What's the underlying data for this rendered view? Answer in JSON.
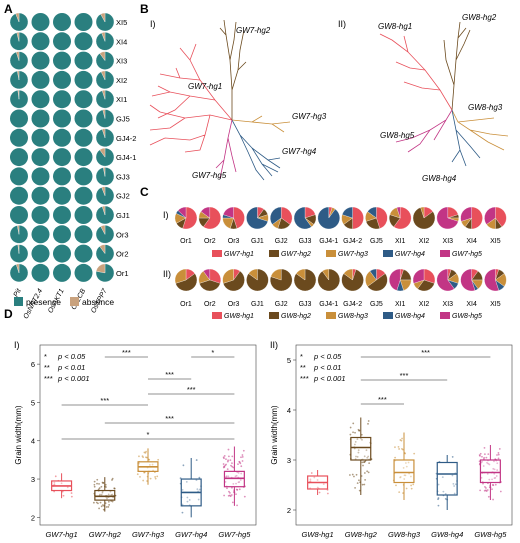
{
  "colors": {
    "presence": "#2a7f7f",
    "absence": "#c9a27e",
    "hg1": "#e8505b",
    "hg2": "#6b4a1e",
    "hg3": "#c98f3a",
    "hg4": "#2e5b86",
    "hg5": "#c23585"
  },
  "panelA": {
    "label": "A",
    "genes": [
      "Pit",
      "OsNRT2.4",
      "OsAKT1",
      "OsLCB",
      "OsTPP7"
    ],
    "rows": [
      "XI5",
      "XI4",
      "XI3",
      "XI2",
      "XI1",
      "GJ5",
      "GJ4-2",
      "GJ4-1",
      "GJ3",
      "GJ2",
      "GJ1",
      "Or3",
      "Or2",
      "Or1"
    ],
    "legend": {
      "presence": "presence",
      "absence": "absence"
    }
  },
  "panelB": {
    "label": "B",
    "sub1": "I)",
    "sub2": "II)",
    "tree1_labels": [
      "GW7-hg1",
      "GW7-hg2",
      "GW7-hg3",
      "GW7-hg4",
      "GW7-hg5"
    ],
    "tree2_labels": [
      "GW8-hg1",
      "GW8-hg2",
      "GW8-hg3",
      "GW8-hg4",
      "GW8-hg5"
    ]
  },
  "panelC": {
    "label": "C",
    "sub1": "I)",
    "sub2": "II)",
    "row1_groups": [
      "Or1",
      "Or2",
      "Or3",
      "GJ1",
      "GJ2",
      "GJ3",
      "GJ4-1",
      "GJ4-2",
      "GJ5",
      "XI1",
      "XI2",
      "XI3",
      "XI4",
      "XI5"
    ],
    "row2_groups": [
      "Or1",
      "Or2",
      "Or3",
      "GJ1",
      "GJ2",
      "GJ3",
      "GJ4-1",
      "GJ4-2",
      "GJ5",
      "XI1",
      "XI2",
      "XI3",
      "XI4",
      "XI5"
    ],
    "legend1": [
      "GW7-hg1",
      "GW7-hg2",
      "GW7-hg3",
      "GW7-hg4",
      "GW7-hg5"
    ],
    "legend2": [
      "GW8-hg1",
      "GW8-hg2",
      "GW8-hg3",
      "GW8-hg4",
      "GW8-hg5"
    ]
  },
  "panelD": {
    "label": "D",
    "sub1": "I)",
    "sub2": "II)",
    "sig_legend": [
      "p < 0.05",
      "p < 0.01",
      "p < 0.001"
    ]
  },
  "chart_data": [
    {
      "type": "box",
      "title": "",
      "xlabel": "",
      "ylabel": "Grain width(mm)",
      "ylim": [
        1.8,
        6.5
      ],
      "yticks": [
        2,
        3,
        4,
        5,
        6
      ],
      "categories": [
        "GW7-hg1",
        "GW7-hg2",
        "GW7-hg3",
        "GW7-hg4",
        "GW7-hg5"
      ],
      "boxes": [
        {
          "q1": 2.7,
          "median": 2.82,
          "q3": 2.95,
          "whisker_low": 2.5,
          "whisker_high": 3.15
        },
        {
          "q1": 2.45,
          "median": 2.55,
          "q3": 2.7,
          "whisker_low": 2.15,
          "whisker_high": 3.05
        },
        {
          "q1": 3.2,
          "median": 3.32,
          "q3": 3.45,
          "whisker_low": 2.85,
          "whisker_high": 3.8
        },
        {
          "q1": 2.3,
          "median": 2.65,
          "q3": 3.0,
          "whisker_low": 2.0,
          "whisker_high": 3.55
        },
        {
          "q1": 2.8,
          "median": 3.02,
          "q3": 3.2,
          "whisker_low": 2.3,
          "whisker_high": 3.85
        }
      ],
      "significance": [
        {
          "from": 2,
          "to": 3,
          "label": "***"
        },
        {
          "from": 4,
          "to": 5,
          "label": "*"
        },
        {
          "from": 3,
          "to": 4,
          "label": "***"
        },
        {
          "from": 3,
          "to": 5,
          "label": "***"
        },
        {
          "from": 1,
          "to": 3,
          "label": "***"
        },
        {
          "from": 2,
          "to": 5,
          "label": "***"
        },
        {
          "from": 1,
          "to": 5,
          "label": "*"
        }
      ]
    },
    {
      "type": "box",
      "title": "",
      "xlabel": "",
      "ylabel": "Grain width(mm)",
      "ylim": [
        1.7,
        5.3
      ],
      "yticks": [
        2,
        3,
        4,
        5
      ],
      "categories": [
        "GW8-hg1",
        "GW8-hg2",
        "GW8-hg3",
        "GW8-hg4",
        "GW8-hg5"
      ],
      "boxes": [
        {
          "q1": 2.42,
          "median": 2.55,
          "q3": 2.68,
          "whisker_low": 2.3,
          "whisker_high": 2.8
        },
        {
          "q1": 3.0,
          "median": 3.25,
          "q3": 3.45,
          "whisker_low": 2.3,
          "whisker_high": 3.85
        },
        {
          "q1": 2.55,
          "median": 2.75,
          "q3": 3.0,
          "whisker_low": 2.2,
          "whisker_high": 3.55
        },
        {
          "q1": 2.3,
          "median": 2.72,
          "q3": 2.95,
          "whisker_low": 2.0,
          "whisker_high": 3.1
        },
        {
          "q1": 2.55,
          "median": 2.75,
          "q3": 3.0,
          "whisker_low": 2.2,
          "whisker_high": 3.3
        }
      ],
      "significance": [
        {
          "from": 2,
          "to": 5,
          "label": "***"
        },
        {
          "from": 2,
          "to": 4,
          "label": "***"
        },
        {
          "from": 2,
          "to": 3,
          "label": "***"
        }
      ]
    }
  ],
  "pie_data": {
    "A_absence": [
      [
        0.06,
        0.0,
        0.0,
        0.0,
        0.08
      ],
      [
        0.04,
        0.0,
        0.0,
        0.0,
        0.06
      ],
      [
        0.05,
        0.0,
        0.0,
        0.0,
        0.1
      ],
      [
        0.03,
        0.0,
        0.0,
        0.0,
        0.07
      ],
      [
        0.02,
        0.0,
        0.0,
        0.0,
        0.05
      ],
      [
        0.0,
        0.0,
        0.0,
        0.0,
        0.04
      ],
      [
        0.0,
        0.0,
        0.0,
        0.0,
        0.05
      ],
      [
        0.0,
        0.0,
        0.0,
        0.0,
        0.1
      ],
      [
        0.0,
        0.0,
        0.0,
        0.0,
        0.03
      ],
      [
        0.0,
        0.0,
        0.0,
        0.0,
        0.06
      ],
      [
        0.0,
        0.0,
        0.0,
        0.0,
        0.05
      ],
      [
        0.03,
        0.0,
        0.0,
        0.0,
        0.08
      ],
      [
        0.02,
        0.0,
        0.0,
        0.0,
        0.1
      ],
      [
        0.05,
        0.0,
        0.0,
        0.0,
        0.22
      ]
    ],
    "C_row1": [
      [
        0.55,
        0.12,
        0.15,
        0.05,
        0.13
      ],
      [
        0.6,
        0.15,
        0.1,
        0.0,
        0.15
      ],
      [
        0.45,
        0.1,
        0.2,
        0.05,
        0.2
      ],
      [
        0.1,
        0.1,
        0.1,
        0.7,
        0.0
      ],
      [
        0.35,
        0.2,
        0.1,
        0.35,
        0.0
      ],
      [
        0.2,
        0.15,
        0.05,
        0.6,
        0.0
      ],
      [
        0.05,
        0.0,
        0.05,
        0.9,
        0.0
      ],
      [
        0.5,
        0.15,
        0.15,
        0.2,
        0.0
      ],
      [
        0.45,
        0.25,
        0.15,
        0.15,
        0.0
      ],
      [
        0.6,
        0.2,
        0.15,
        0.0,
        0.05
      ],
      [
        0.15,
        0.8,
        0.05,
        0.0,
        0.0
      ],
      [
        0.2,
        0.05,
        0.05,
        0.0,
        0.7
      ],
      [
        0.5,
        0.1,
        0.1,
        0.0,
        0.3
      ],
      [
        0.4,
        0.1,
        0.15,
        0.0,
        0.35
      ]
    ],
    "C_row2": [
      [
        0.15,
        0.55,
        0.3,
        0.0,
        0.0
      ],
      [
        0.3,
        0.4,
        0.2,
        0.0,
        0.1
      ],
      [
        0.1,
        0.6,
        0.3,
        0.0,
        0.0
      ],
      [
        0.0,
        0.85,
        0.15,
        0.0,
        0.0
      ],
      [
        0.0,
        0.8,
        0.2,
        0.0,
        0.0
      ],
      [
        0.0,
        0.85,
        0.15,
        0.0,
        0.0
      ],
      [
        0.0,
        0.9,
        0.1,
        0.0,
        0.0
      ],
      [
        0.05,
        0.8,
        0.15,
        0.0,
        0.0
      ],
      [
        0.15,
        0.5,
        0.25,
        0.1,
        0.0
      ],
      [
        0.05,
        0.2,
        0.2,
        0.1,
        0.45
      ],
      [
        0.3,
        0.3,
        0.1,
        0.0,
        0.3
      ],
      [
        0.05,
        0.1,
        0.15,
        0.1,
        0.6
      ],
      [
        0.1,
        0.15,
        0.15,
        0.05,
        0.55
      ],
      [
        0.05,
        0.1,
        0.2,
        0.1,
        0.55
      ]
    ]
  }
}
